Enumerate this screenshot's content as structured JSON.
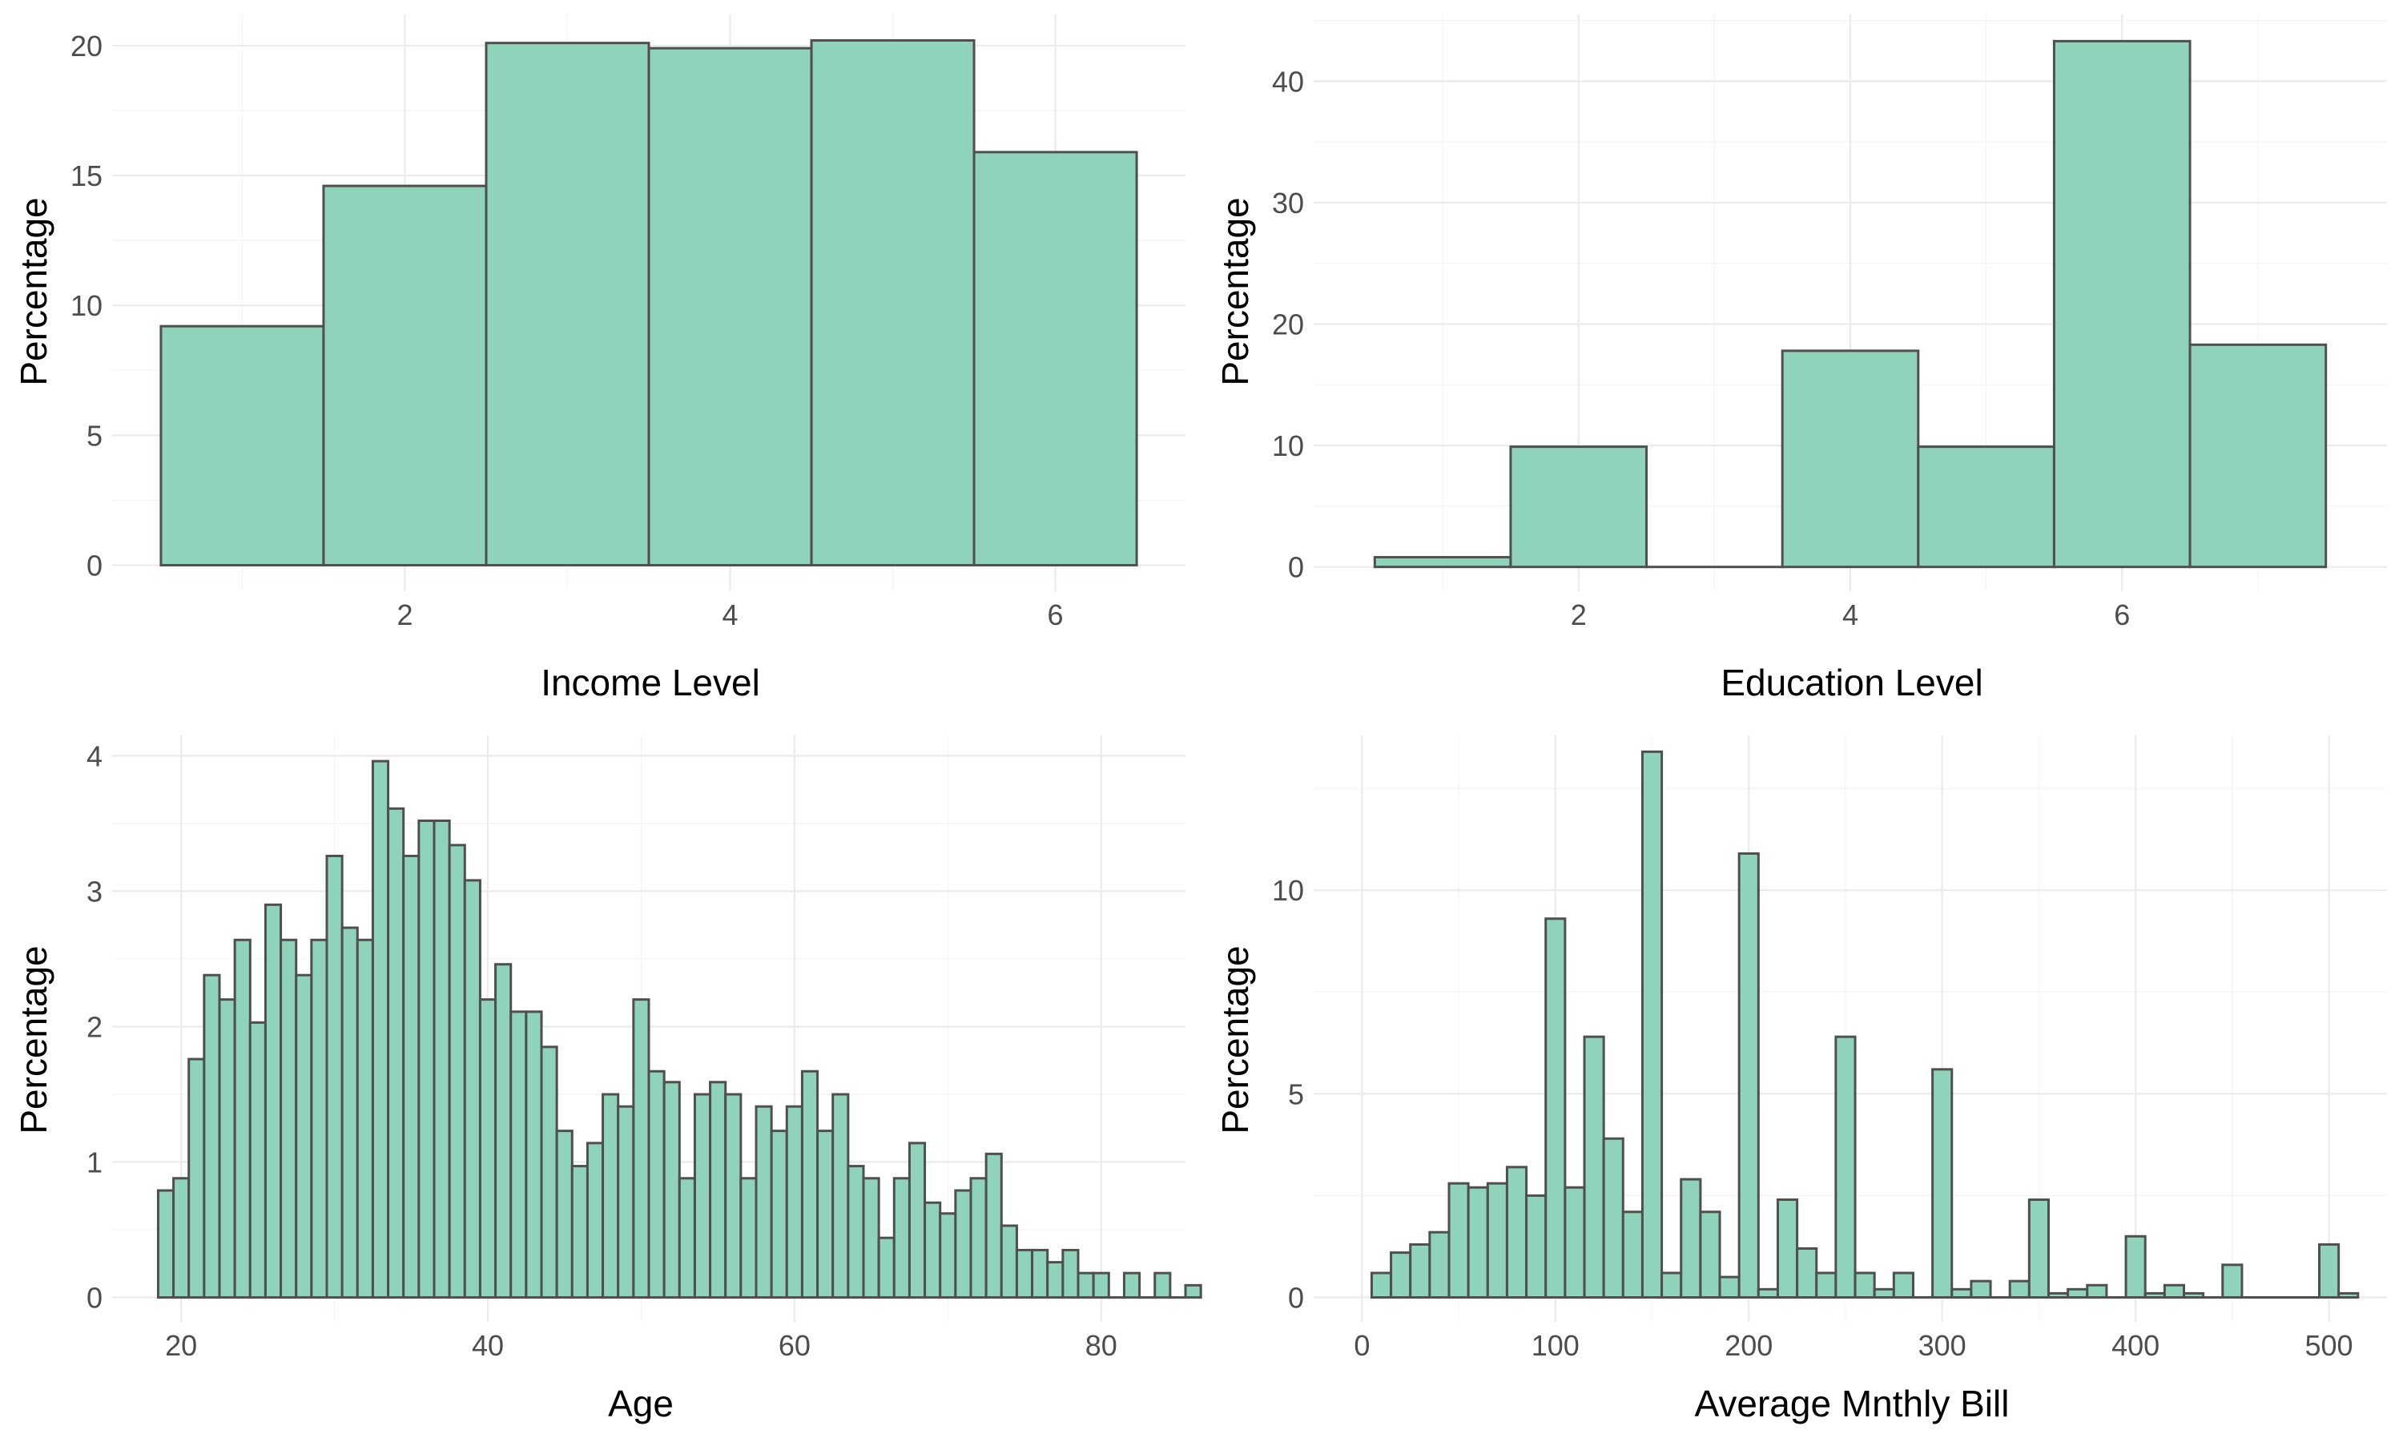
{
  "colors": {
    "bar_fill": "#8fd3bb",
    "bar_stroke": "#4f4f4f",
    "grid": "#ebebeb",
    "background": "#ffffff"
  },
  "chart_data": [
    {
      "type": "bar",
      "title": "",
      "xlabel": "Income Level",
      "ylabel": "Percentage",
      "xlim": [
        0.2,
        6.8
      ],
      "ylim": [
        -1.0,
        21.2
      ],
      "x_ticks": [
        2,
        4,
        6
      ],
      "y_ticks": [
        0,
        5,
        10,
        15,
        20
      ],
      "bin_width": 1,
      "x": [
        1,
        2,
        3,
        4,
        5,
        6
      ],
      "values": [
        9.2,
        14.6,
        20.1,
        19.9,
        20.2,
        15.9
      ],
      "grid": true
    },
    {
      "type": "bar",
      "title": "",
      "xlabel": "Education Level",
      "ylabel": "Percentage",
      "xlim": [
        0.05,
        7.95
      ],
      "ylim": [
        -2.0,
        45.5
      ],
      "x_ticks": [
        2,
        4,
        6
      ],
      "y_ticks": [
        0,
        10,
        20,
        30,
        40
      ],
      "bin_width": 1,
      "x": [
        1,
        2,
        3,
        4,
        5,
        6,
        7
      ],
      "values": [
        0.8,
        9.9,
        0,
        17.8,
        9.9,
        43.3,
        18.3
      ],
      "grid": true
    },
    {
      "type": "bar",
      "title": "",
      "xlabel": "Age",
      "ylabel": "Percentage",
      "xlim": [
        15.5,
        85.5
      ],
      "ylim": [
        -0.18,
        4.15
      ],
      "x_ticks": [
        20,
        40,
        60,
        80
      ],
      "y_ticks": [
        0,
        1,
        2,
        3,
        4
      ],
      "bin_width": 1,
      "x_start": 19,
      "values": [
        0.79,
        0.88,
        1.76,
        2.38,
        2.2,
        2.64,
        2.03,
        2.9,
        2.64,
        2.38,
        2.64,
        3.26,
        2.73,
        2.64,
        3.96,
        3.61,
        3.26,
        3.52,
        3.52,
        3.34,
        3.08,
        2.2,
        2.46,
        2.11,
        2.11,
        1.85,
        1.23,
        0.97,
        1.14,
        1.5,
        1.41,
        2.2,
        1.67,
        1.59,
        0.88,
        1.5,
        1.59,
        1.5,
        0.88,
        1.41,
        1.23,
        1.41,
        1.67,
        1.23,
        1.5,
        0.97,
        0.88,
        0.44,
        0.88,
        1.14,
        0.7,
        0.62,
        0.79,
        0.88,
        1.06,
        0.53,
        0.35,
        0.35,
        0.26,
        0.35,
        0.18,
        0.18,
        0,
        0.18,
        0,
        0.18,
        0,
        0.09
      ]
    },
    {
      "type": "bar",
      "title": "",
      "xlabel": "Average Mnthly Bill",
      "ylabel": "Percentage",
      "xlim": [
        -25,
        530
      ],
      "ylim": [
        -0.6,
        13.8
      ],
      "x_ticks": [
        0,
        100,
        200,
        300,
        400,
        500
      ],
      "y_ticks": [
        0,
        5,
        10
      ],
      "bin_width": 10,
      "x_start": 10,
      "values": [
        0.6,
        1.1,
        1.3,
        1.6,
        2.8,
        2.7,
        2.8,
        3.2,
        2.5,
        9.3,
        2.7,
        6.4,
        3.9,
        2.1,
        13.4,
        0.6,
        2.9,
        2.1,
        0.5,
        10.9,
        0.2,
        2.4,
        1.2,
        0.6,
        6.4,
        0.6,
        0.2,
        0.6,
        0,
        5.6,
        0.2,
        0.4,
        0,
        0.4,
        2.4,
        0.1,
        0.2,
        0.3,
        0,
        1.5,
        0.1,
        0.3,
        0.1,
        0,
        0.8,
        0,
        0,
        0,
        0,
        1.3,
        0.1
      ]
    }
  ]
}
